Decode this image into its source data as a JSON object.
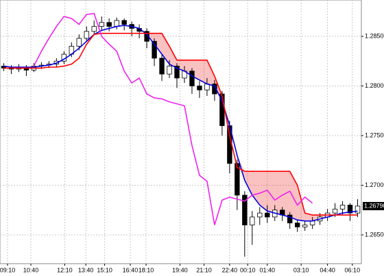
{
  "chart_data": {
    "type": "candlestick",
    "x": [
      0,
      1,
      2,
      3,
      4,
      5,
      6,
      7,
      8,
      9,
      10,
      11,
      12,
      13,
      14,
      15,
      16,
      17,
      18,
      19,
      20,
      21,
      22,
      23,
      24,
      25,
      26,
      27,
      28,
      29,
      30,
      31,
      32,
      33,
      34,
      35,
      36,
      37,
      38,
      39,
      40,
      41,
      42,
      43,
      44,
      45,
      46,
      47
    ],
    "open": [
      1.282,
      1.2818,
      1.2817,
      1.2819,
      1.2816,
      1.282,
      1.2821,
      1.2822,
      1.2825,
      1.2832,
      1.284,
      1.2848,
      1.2855,
      1.286,
      1.2864,
      1.286,
      1.2866,
      1.2862,
      1.2858,
      1.2855,
      1.2845,
      1.2828,
      1.2812,
      1.282,
      1.2808,
      1.2815,
      1.28,
      1.2796,
      1.2802,
      1.2792,
      1.276,
      1.2722,
      1.269,
      1.266,
      1.2668,
      1.2672,
      1.2668,
      1.2675,
      1.267,
      1.2662,
      1.2658,
      1.266,
      1.2664,
      1.2668,
      1.2672,
      1.2676,
      1.268,
      1.2672
    ],
    "high": [
      1.2823,
      1.2821,
      1.2822,
      1.2821,
      1.2823,
      1.2824,
      1.2825,
      1.2828,
      1.2835,
      1.2844,
      1.2852,
      1.286,
      1.2866,
      1.287,
      1.2868,
      1.2869,
      1.2868,
      1.2865,
      1.2862,
      1.2858,
      1.2848,
      1.2832,
      1.2826,
      1.2823,
      1.282,
      1.2818,
      1.2805,
      1.2808,
      1.2806,
      1.2795,
      1.2765,
      1.2726,
      1.2694,
      1.2674,
      1.2678,
      1.268,
      1.268,
      1.2678,
      1.2673,
      1.2665,
      1.2664,
      1.2668,
      1.2672,
      1.2676,
      1.2682,
      1.2684,
      1.2682,
      1.2686
    ],
    "low": [
      1.2815,
      1.2812,
      1.2814,
      1.281,
      1.2814,
      1.2817,
      1.2818,
      1.2819,
      1.2822,
      1.2829,
      1.2836,
      1.2845,
      1.2851,
      1.2856,
      1.2855,
      1.2857,
      1.2856,
      1.285,
      1.2848,
      1.2838,
      1.282,
      1.2805,
      1.2808,
      1.2798,
      1.2803,
      1.2792,
      1.2788,
      1.279,
      1.2785,
      1.275,
      1.2712,
      1.2675,
      1.2628,
      1.264,
      1.266,
      1.2662,
      1.2664,
      1.2664,
      1.2656,
      1.2653,
      1.2654,
      1.2656,
      1.266,
      1.2664,
      1.2668,
      1.267,
      1.2664,
      1.2668
    ],
    "close": [
      1.2818,
      1.2817,
      1.2819,
      1.2816,
      1.282,
      1.2821,
      1.2822,
      1.2825,
      1.2832,
      1.284,
      1.2848,
      1.2855,
      1.286,
      1.2864,
      1.286,
      1.2866,
      1.2862,
      1.2858,
      1.2855,
      1.2845,
      1.2828,
      1.2812,
      1.282,
      1.2808,
      1.2815,
      1.28,
      1.2796,
      1.2802,
      1.2792,
      1.276,
      1.2722,
      1.269,
      1.266,
      1.2668,
      1.2672,
      1.2668,
      1.2675,
      1.267,
      1.2662,
      1.2658,
      1.266,
      1.2664,
      1.2668,
      1.2672,
      1.2676,
      1.268,
      1.2672,
      1.2679
    ],
    "up_color": "#ffffff",
    "down_color": "#000000",
    "series": [
      {
        "color": "#0000dd",
        "values": [
          1.282,
          1.2819,
          1.2819,
          1.2819,
          1.2819,
          1.282,
          1.2821,
          1.2823,
          1.2827,
          1.2832,
          1.2838,
          1.2845,
          1.2852,
          1.2856,
          1.2858,
          1.286,
          1.2861,
          1.286,
          1.2858,
          1.2852,
          1.2842,
          1.2832,
          1.2822,
          1.2818,
          1.2815,
          1.281,
          1.2806,
          1.2802,
          1.28,
          1.2785,
          1.276,
          1.273,
          1.2705,
          1.269,
          1.268,
          1.2674,
          1.2672,
          1.267,
          1.2668,
          1.2665,
          1.2664,
          1.2664,
          1.2666,
          1.2668,
          1.267,
          1.2672,
          1.2673,
          1.2674
        ]
      },
      {
        "color": "#ff0000",
        "values": [
          1.2818,
          1.2818,
          1.2818,
          1.2818,
          1.2818,
          1.2818,
          1.2819,
          1.2819,
          1.282,
          1.2822,
          1.2828,
          1.2842,
          1.2852,
          1.2853,
          1.2853,
          1.2853,
          1.2853,
          1.2853,
          1.2853,
          1.2853,
          1.2853,
          1.2853,
          1.284,
          1.2826,
          1.2826,
          1.2826,
          1.2826,
          1.2826,
          1.281,
          1.279,
          1.275,
          1.2718,
          1.2714,
          1.2714,
          1.2714,
          1.2714,
          1.2714,
          1.2714,
          1.2714,
          1.27,
          1.2672,
          1.267,
          1.267,
          1.267,
          1.267,
          1.267,
          1.267,
          1.267
        ]
      },
      {
        "color": "#ee22ee",
        "values": [
          null,
          null,
          null,
          null,
          1.282,
          1.2835,
          1.2848,
          1.286,
          1.287,
          1.2868,
          1.2862,
          1.2872,
          1.2873,
          1.285,
          1.2842,
          1.2835,
          1.2815,
          1.2803,
          1.2808,
          1.2792,
          1.2788,
          1.2787,
          1.2784,
          1.2782,
          1.278,
          1.274,
          1.271,
          1.2704,
          1.266,
          1.2685,
          1.2688,
          1.2686,
          1.2684,
          1.269,
          1.2692,
          1.2695,
          1.2685,
          1.269,
          1.2694,
          1.268,
          1.2688,
          1.2682,
          null,
          null,
          null,
          null,
          null,
          null
        ]
      }
    ],
    "cloud_color": "#ee3333",
    "last_label": "1.26790",
    "xlim": [
      -0.5,
      47.5
    ],
    "xticks": [
      {
        "value": 0.5,
        "label": "09:10"
      },
      {
        "value": 3.6,
        "label": "10:40"
      },
      {
        "value": 8.1,
        "label": "12:10"
      },
      {
        "value": 10.9,
        "label": "13:40"
      },
      {
        "value": 13.4,
        "label": "15:10"
      },
      {
        "value": 16.8,
        "label": "16:40"
      },
      {
        "value": 18.9,
        "label": "18:10"
      },
      {
        "value": 23.4,
        "label": "19:40"
      },
      {
        "value": 26.6,
        "label": "21:10"
      },
      {
        "value": 30,
        "label": "22:40"
      },
      {
        "value": 32.4,
        "label": "00:10"
      },
      {
        "value": 35,
        "label": "01:40"
      },
      {
        "value": 39.5,
        "label": "03:10"
      },
      {
        "value": 43,
        "label": "04:40"
      },
      {
        "value": 46.3,
        "label": "06:10"
      }
    ],
    "ylim": [
      1.2621,
      1.28866
    ],
    "yticks": [
      {
        "value": 1.265,
        "label": "1.26500"
      },
      {
        "value": 1.27,
        "label": "1.27000"
      },
      {
        "value": 1.275,
        "label": "1.27500"
      },
      {
        "value": 1.28,
        "label": "1.28000"
      },
      {
        "value": 1.285,
        "label": "1.28500"
      }
    ],
    "grid": true
  }
}
